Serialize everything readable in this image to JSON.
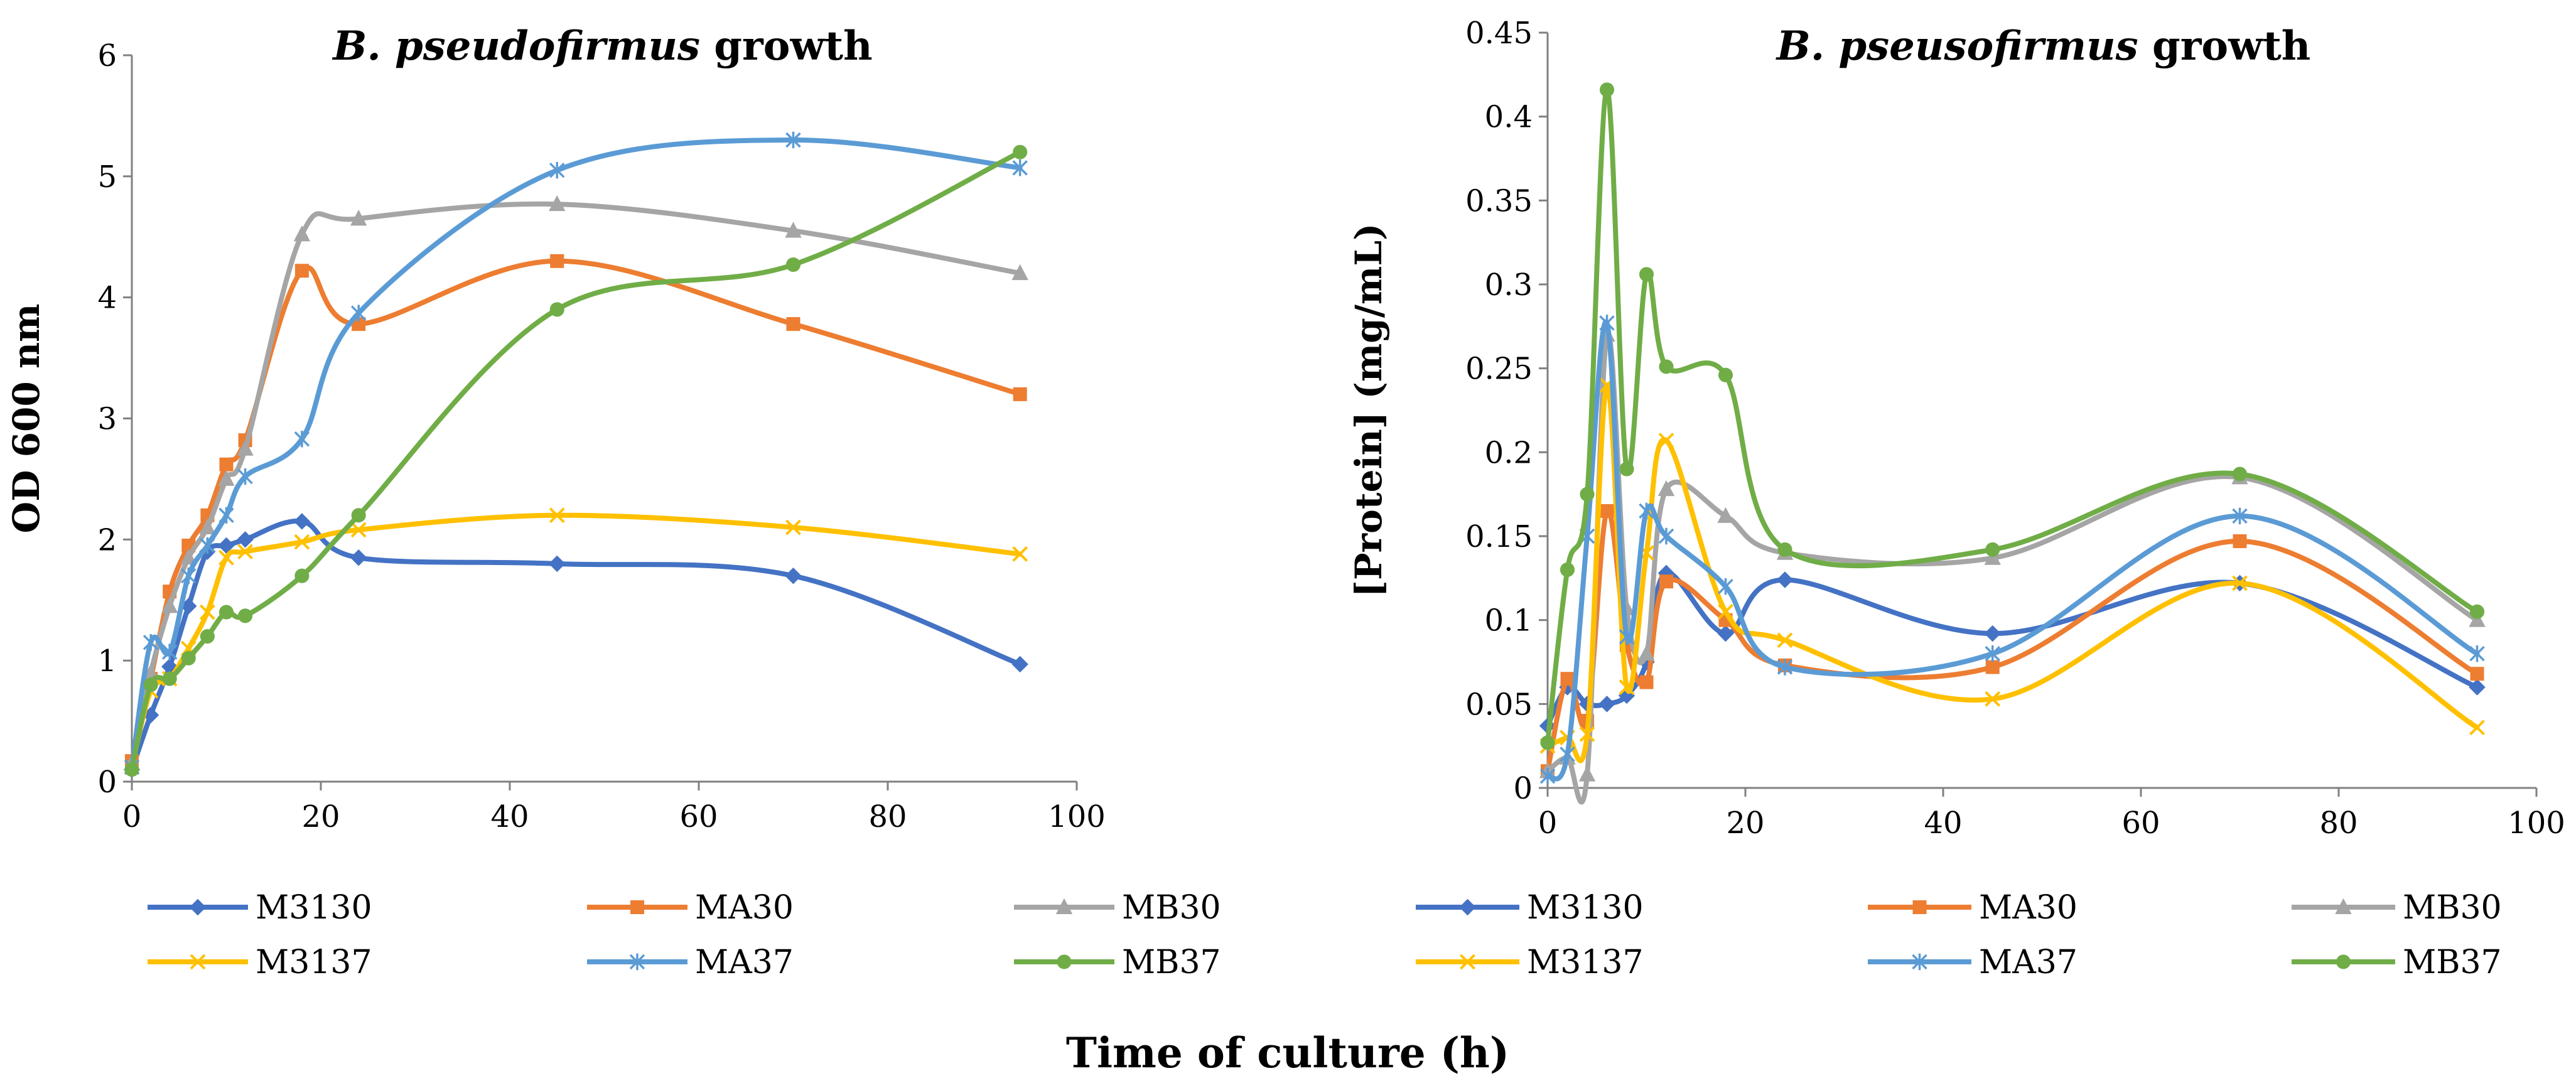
{
  "x_axis_label": "Time of culture (h)",
  "chart_data": [
    {
      "type": "line",
      "title_italic": "B. pseudofirmus",
      "title_rest": "growth",
      "xlabel": "Time of culture (h)",
      "ylabel": "OD 600 nm",
      "xlim": [
        0,
        100
      ],
      "ylim": [
        0,
        6
      ],
      "xticks": [
        "0",
        "20",
        "40",
        "60",
        "80",
        "100"
      ],
      "yticks": [
        "0",
        "1",
        "2",
        "3",
        "4",
        "5",
        "6"
      ],
      "legend_position": "bottom",
      "series": [
        {
          "name": "M3130",
          "color": "#4472C4",
          "marker": "diamond",
          "x": [
            0,
            2,
            4,
            6,
            8,
            10,
            12,
            18,
            24,
            45,
            70,
            94
          ],
          "y": [
            0.1,
            0.55,
            0.95,
            1.45,
            1.9,
            1.95,
            2.0,
            2.15,
            1.85,
            1.8,
            1.7,
            0.97
          ]
        },
        {
          "name": "MA30",
          "color": "#ED7D31",
          "marker": "square",
          "x": [
            0,
            2,
            4,
            6,
            8,
            10,
            12,
            18,
            24,
            45,
            70,
            94
          ],
          "y": [
            0.17,
            0.85,
            1.57,
            1.95,
            2.2,
            2.62,
            2.82,
            4.22,
            3.78,
            4.3,
            3.78,
            3.2
          ]
        },
        {
          "name": "MB30",
          "color": "#A5A5A5",
          "marker": "triangle",
          "x": [
            0,
            2,
            4,
            6,
            8,
            10,
            12,
            18,
            24,
            45,
            70,
            94
          ],
          "y": [
            0.15,
            0.9,
            1.45,
            1.85,
            2.1,
            2.5,
            2.75,
            4.52,
            4.65,
            4.77,
            4.55,
            4.2
          ]
        },
        {
          "name": "M3137",
          "color": "#FFC000",
          "marker": "x",
          "x": [
            0,
            2,
            4,
            6,
            8,
            10,
            12,
            18,
            24,
            45,
            70,
            94
          ],
          "y": [
            0.12,
            0.75,
            0.85,
            1.1,
            1.4,
            1.85,
            1.9,
            1.98,
            2.08,
            2.2,
            2.1,
            1.88
          ]
        },
        {
          "name": "MA37",
          "color": "#5B9BD5",
          "marker": "asterisk",
          "x": [
            0,
            2,
            4,
            6,
            8,
            10,
            12,
            18,
            24,
            45,
            70,
            94
          ],
          "y": [
            0.12,
            1.15,
            1.07,
            1.7,
            1.95,
            2.2,
            2.52,
            2.83,
            3.87,
            5.05,
            5.3,
            5.07
          ]
        },
        {
          "name": "MB37",
          "color": "#70AD47",
          "marker": "circle",
          "x": [
            0,
            2,
            4,
            6,
            8,
            10,
            12,
            18,
            24,
            45,
            70,
            94
          ],
          "y": [
            0.1,
            0.8,
            0.85,
            1.02,
            1.2,
            1.4,
            1.37,
            1.7,
            2.2,
            3.9,
            4.27,
            5.2
          ]
        }
      ]
    },
    {
      "type": "line",
      "title_italic": "B. pseusofirmus",
      "title_rest": "growth",
      "xlabel": "Time of culture (h)",
      "ylabel": "[Protein] (mg/mL)",
      "xlim": [
        0,
        100
      ],
      "ylim": [
        0,
        0.45
      ],
      "xticks": [
        "0",
        "20",
        "40",
        "60",
        "80",
        "100"
      ],
      "yticks": [
        "0",
        "0.05",
        "0.1",
        "0.15",
        "0.2",
        "0.25",
        "0.3",
        "0.35",
        "0.4",
        "0.45"
      ],
      "legend_position": "bottom",
      "series": [
        {
          "name": "M3130",
          "color": "#4472C4",
          "marker": "diamond",
          "x": [
            0,
            2,
            4,
            6,
            8,
            10,
            12,
            18,
            24,
            45,
            70,
            94
          ],
          "y": [
            0.037,
            0.06,
            0.05,
            0.05,
            0.055,
            0.075,
            0.128,
            0.092,
            0.124,
            0.092,
            0.122,
            0.06
          ]
        },
        {
          "name": "MA30",
          "color": "#ED7D31",
          "marker": "square",
          "x": [
            0,
            2,
            4,
            6,
            8,
            10,
            12,
            18,
            24,
            45,
            70,
            94
          ],
          "y": [
            0.01,
            0.065,
            0.04,
            0.165,
            0.085,
            0.063,
            0.123,
            0.1,
            0.073,
            0.072,
            0.147,
            0.068
          ]
        },
        {
          "name": "MB30",
          "color": "#A5A5A5",
          "marker": "triangle",
          "x": [
            0,
            2,
            4,
            6,
            8,
            10,
            12,
            18,
            24,
            45,
            70,
            94
          ],
          "y": [
            0.01,
            0.018,
            0.008,
            0.27,
            0.107,
            0.08,
            0.178,
            0.162,
            0.14,
            0.137,
            0.185,
            0.1
          ]
        },
        {
          "name": "M3137",
          "color": "#FFC000",
          "marker": "x",
          "x": [
            0,
            2,
            4,
            6,
            8,
            10,
            12,
            18,
            24,
            45,
            70,
            94
          ],
          "y": [
            0.025,
            0.03,
            0.032,
            0.24,
            0.06,
            0.14,
            0.207,
            0.105,
            0.088,
            0.053,
            0.122,
            0.036
          ]
        },
        {
          "name": "MA37",
          "color": "#5B9BD5",
          "marker": "asterisk",
          "x": [
            0,
            2,
            4,
            6,
            8,
            10,
            12,
            18,
            24,
            45,
            70,
            94
          ],
          "y": [
            0.007,
            0.02,
            0.15,
            0.277,
            0.09,
            0.165,
            0.15,
            0.12,
            0.072,
            0.08,
            0.162,
            0.08
          ]
        },
        {
          "name": "MB37",
          "color": "#70AD47",
          "marker": "circle",
          "x": [
            0,
            2,
            4,
            6,
            8,
            10,
            12,
            18,
            24,
            45,
            70,
            94
          ],
          "y": [
            0.027,
            0.13,
            0.175,
            0.416,
            0.19,
            0.306,
            0.251,
            0.246,
            0.142,
            0.142,
            0.187,
            0.105
          ]
        }
      ]
    }
  ]
}
